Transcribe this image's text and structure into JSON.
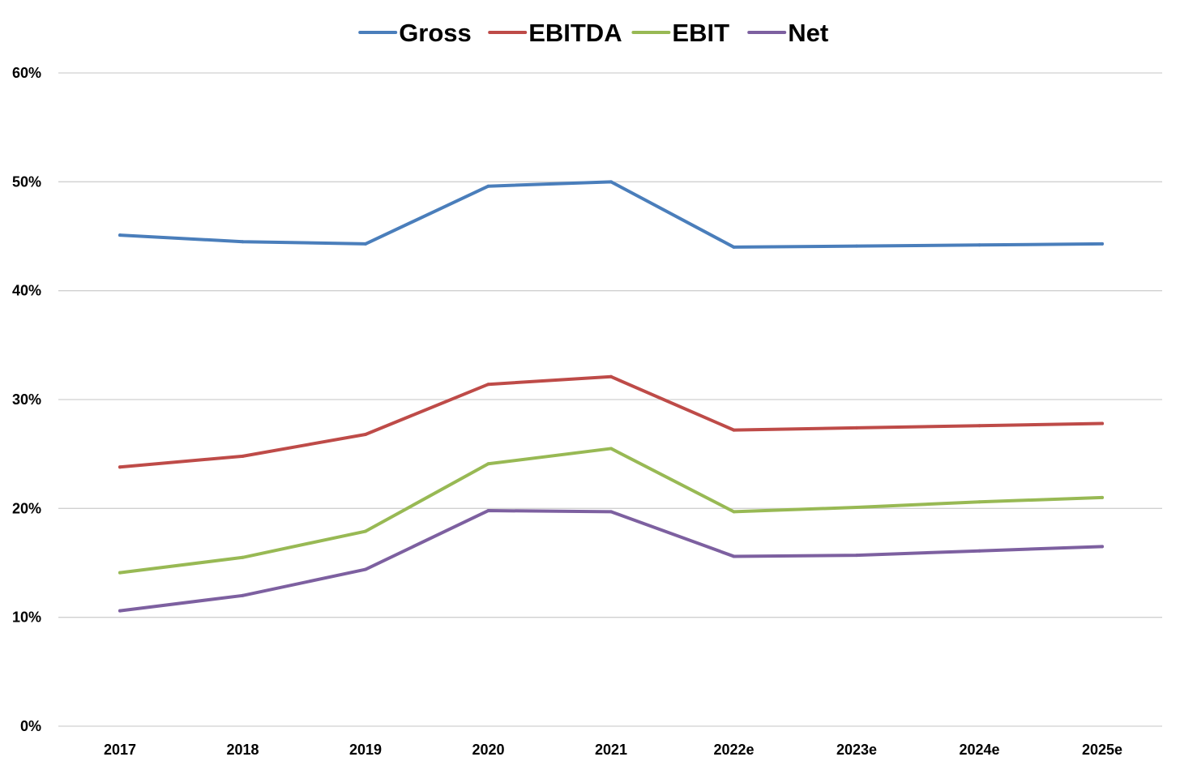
{
  "chart_data": {
    "type": "line",
    "title": "",
    "xlabel": "",
    "ylabel": "",
    "categories": [
      "2017",
      "2018",
      "2019",
      "2020",
      "2021",
      "2022e",
      "2023e",
      "2024e",
      "2025e"
    ],
    "y_ticks": [
      0,
      10,
      20,
      30,
      40,
      50,
      60
    ],
    "y_tick_labels": [
      "0%",
      "10%",
      "20%",
      "30%",
      "40%",
      "50%",
      "60%"
    ],
    "ylim": [
      0,
      60
    ],
    "y_unit": "%",
    "grid": true,
    "legend_position": "top",
    "series": [
      {
        "name": "Gross",
        "color": "#4a7ebb",
        "values": [
          45.1,
          44.5,
          44.3,
          49.6,
          50.0,
          44.0,
          44.1,
          44.2,
          44.3
        ]
      },
      {
        "name": "EBITDA",
        "color": "#be4b48",
        "values": [
          23.8,
          24.8,
          26.8,
          31.4,
          32.1,
          27.2,
          27.4,
          27.6,
          27.8
        ]
      },
      {
        "name": "EBIT",
        "color": "#98b954",
        "values": [
          14.1,
          15.5,
          17.9,
          24.1,
          25.5,
          19.7,
          20.1,
          20.6,
          21.0
        ]
      },
      {
        "name": "Net",
        "color": "#7d60a0",
        "values": [
          10.6,
          12.0,
          14.4,
          19.8,
          19.7,
          15.6,
          15.7,
          16.1,
          16.5
        ]
      }
    ]
  }
}
